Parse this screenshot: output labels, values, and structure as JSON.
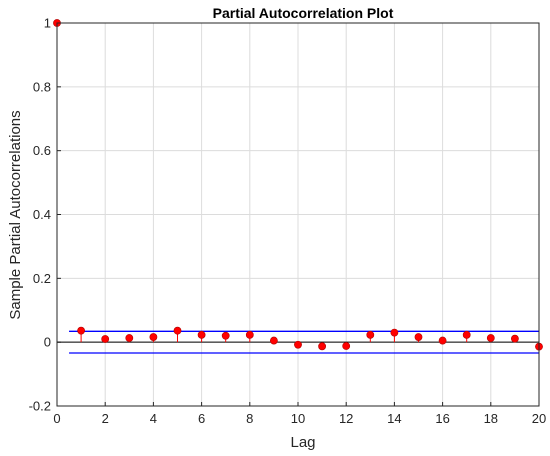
{
  "chart_data": {
    "type": "stem",
    "title": "Partial Autocorrelation Plot",
    "xlabel": "Lag",
    "ylabel": "Sample Partial Autocorrelations",
    "xlim": [
      0,
      20
    ],
    "ylim": [
      -0.2,
      1
    ],
    "xticks": [
      "0",
      "2",
      "4",
      "6",
      "8",
      "10",
      "12",
      "14",
      "16",
      "18",
      "20"
    ],
    "yticks": [
      "-0.2",
      "0",
      "0.2",
      "0.4",
      "0.6",
      "0.8",
      "1"
    ],
    "grid": true,
    "lags": [
      0,
      1,
      2,
      3,
      4,
      5,
      6,
      7,
      8,
      9,
      10,
      11,
      12,
      13,
      14,
      15,
      16,
      17,
      18,
      19,
      20
    ],
    "values": [
      1.0,
      0.036,
      0.01,
      0.013,
      0.016,
      0.036,
      0.023,
      0.02,
      0.023,
      0.005,
      -0.008,
      -0.013,
      -0.012,
      0.023,
      0.03,
      0.016,
      0.005,
      0.023,
      0.013,
      0.011,
      -0.014
    ],
    "confidence_bounds": [
      -0.034,
      0.034
    ],
    "colors": {
      "stem": "#ff0000",
      "bound": "#0000ff",
      "axis": "#262626",
      "grid": "#dcdcdc",
      "zero_line": "#000000"
    }
  }
}
